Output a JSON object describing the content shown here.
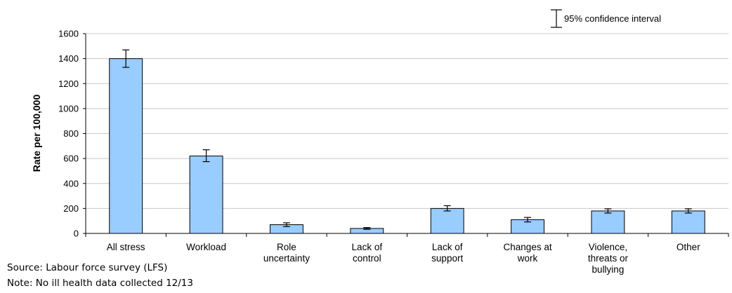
{
  "chart_data": {
    "type": "bar",
    "ylabel": "Rate per 100,000",
    "xlabel": "",
    "ylim": [
      0,
      1600
    ],
    "yticks": [
      0,
      200,
      400,
      600,
      800,
      1000,
      1200,
      1400,
      1600
    ],
    "grid": true,
    "categories": [
      [
        "All stress"
      ],
      [
        "Workload"
      ],
      [
        "Role",
        "uncertainty"
      ],
      [
        "Lack of",
        "control"
      ],
      [
        "Lack of",
        "support"
      ],
      [
        "Changes at",
        "work"
      ],
      [
        "Violence,",
        "threats or",
        "bullying"
      ],
      [
        "Other"
      ]
    ],
    "values": [
      1400,
      620,
      70,
      40,
      200,
      110,
      180,
      180
    ],
    "ci_low": [
      1330,
      575,
      55,
      33,
      180,
      92,
      163,
      163
    ],
    "ci_high": [
      1470,
      670,
      85,
      47,
      222,
      128,
      197,
      197
    ],
    "legend": "95% confidence interval",
    "legend_position": "top-right",
    "bar_color": "#99ccff",
    "bar_edge_color": "#000000"
  },
  "footnotes": {
    "source": "Source: Labour force survey (LFS)",
    "note": "Note:  No ill health data collected 12/13"
  }
}
